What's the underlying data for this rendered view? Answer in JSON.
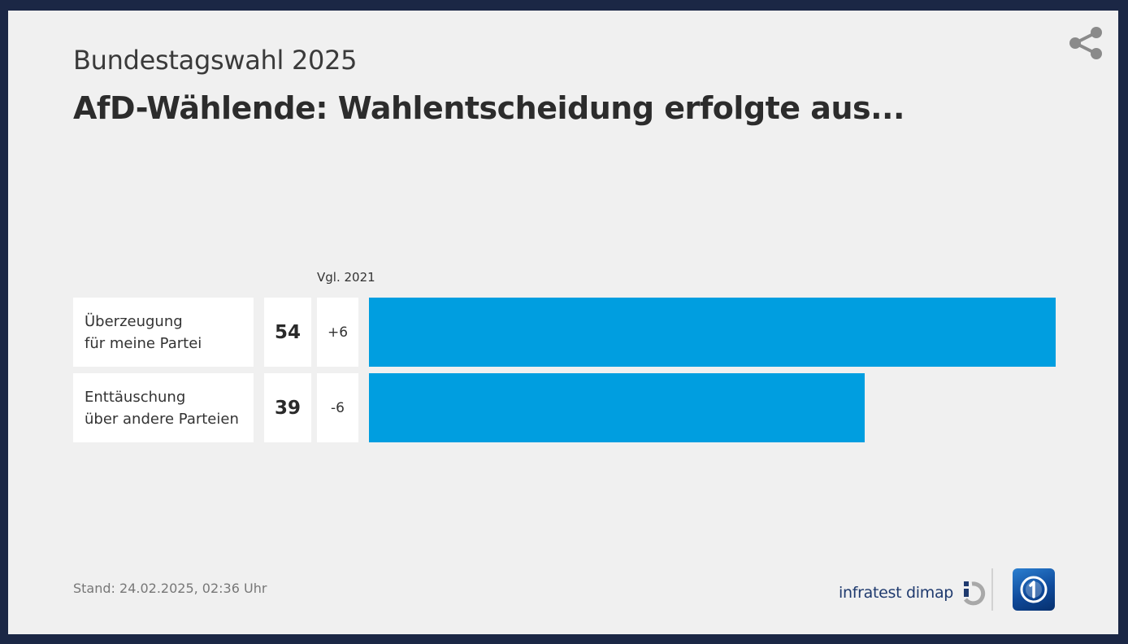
{
  "header": {
    "kicker": "Bundestagswahl 2025",
    "title": "AfD-Wählende: Wahlentscheidung erfolgte aus..."
  },
  "comparison_header": "Vgl. 2021",
  "rows": [
    {
      "label": "Überzeugung\nfür meine Partei",
      "value": "54",
      "change": "+6"
    },
    {
      "label": "Enttäuschung\nüber andere Parteien",
      "value": "39",
      "change": "-6"
    }
  ],
  "footer": {
    "stand": "Stand:  24.02.2025, 02:36 Uhr",
    "source_logo_text": "infratest dimap",
    "broadcaster_logo": "ard-1-logo"
  },
  "icons": {
    "share": "share-icon"
  },
  "colors": {
    "bar": "#009ee0",
    "background": "#f0f0f0",
    "frame": "#1b2745"
  },
  "chart_data": {
    "type": "bar",
    "orientation": "horizontal",
    "title": "AfD-Wählende: Wahlentscheidung erfolgte aus...",
    "subtitle": "Bundestagswahl 2025",
    "categories": [
      "Überzeugung für meine Partei",
      "Enttäuschung über andere Parteien"
    ],
    "values": [
      54,
      39
    ],
    "change_vs_2021": [
      "+6",
      "-6"
    ],
    "change_header": "Vgl. 2021",
    "unit": "%",
    "xlim": [
      0,
      54
    ],
    "grid": false,
    "legend": "none"
  }
}
